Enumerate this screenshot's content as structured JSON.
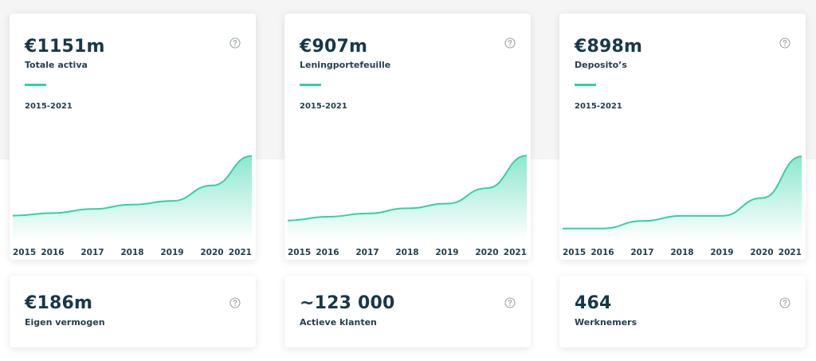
{
  "colors": {
    "accent": "#2fd3a7",
    "text": "#17384a",
    "background_band": "#f5f5f5"
  },
  "help_icon": "question-circle-icon",
  "cards": [
    {
      "value": "€1151m",
      "label": "Totale activa",
      "range": "2015-2021"
    },
    {
      "value": "€907m",
      "label": "Leningportefeuille",
      "range": "2015-2021"
    },
    {
      "value": "€898m",
      "label": "Deposito’s",
      "range": "2015-2021"
    }
  ],
  "small_cards": [
    {
      "value": "€186m",
      "label": "Eigen vermogen"
    },
    {
      "value": "~123 000",
      "label": "Actieve klanten"
    },
    {
      "value": "464",
      "label": "Werknemers"
    }
  ],
  "chart_data": [
    {
      "type": "area",
      "x": [
        "2015",
        "2016",
        "2017",
        "2018",
        "2019",
        "2020",
        "2021"
      ],
      "values": [
        340,
        375,
        430,
        490,
        540,
        750,
        1151
      ],
      "ylim": [
        0,
        1300
      ],
      "grid": false,
      "xlabel": "",
      "ylabel": ""
    },
    {
      "type": "area",
      "x": [
        "2015",
        "2016",
        "2017",
        "2018",
        "2019",
        "2020",
        "2021"
      ],
      "values": [
        215,
        255,
        290,
        345,
        395,
        560,
        907
      ],
      "ylim": [
        0,
        1020
      ],
      "grid": false,
      "xlabel": "",
      "ylabel": ""
    },
    {
      "type": "area",
      "x": [
        "2015",
        "2016",
        "2017",
        "2018",
        "2019",
        "2020",
        "2021"
      ],
      "values": [
        130,
        130,
        210,
        265,
        265,
        455,
        898
      ],
      "ylim": [
        0,
        1020
      ],
      "grid": false,
      "xlabel": "",
      "ylabel": ""
    }
  ]
}
